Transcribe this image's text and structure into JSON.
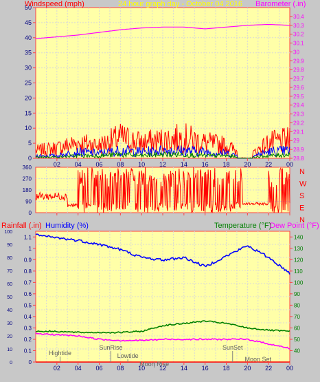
{
  "header": {
    "left_title": "Windspeed (mph)",
    "center_title": "24 hour graph day - October 04 2016",
    "right_title": "Barometer (.in)"
  },
  "colors": {
    "plot_bg": "#ffffa8",
    "grid": "#d8d8d8",
    "axis": "#ff4040",
    "wind_gust": "#ff0000",
    "wind_avg": "#0000ff",
    "wind_low": "#008000",
    "barometer": "#ff00ff",
    "direction": "#ff0000",
    "humidity": "#0000ff",
    "temperature": "#008000",
    "dewpoint": "#ff00ff",
    "title_yellow": "#ffff00"
  },
  "x_ticks": [
    "02",
    "04",
    "06",
    "08",
    "10",
    "12",
    "14",
    "16",
    "18",
    "20",
    "22",
    "00"
  ],
  "chart_data": [
    {
      "type": "line",
      "title": "24 hour graph day - October 04 2016",
      "xlabel": "",
      "ylabel_left": "Windspeed (mph)",
      "ylabel_right": "Barometer (.in)",
      "ylim_left": [
        0,
        50
      ],
      "ylim_right": [
        28.8,
        30.5
      ],
      "left_ticks": [
        "0",
        "5",
        "10",
        "15",
        "20",
        "25",
        "30",
        "35",
        "40",
        "45",
        "50"
      ],
      "right_ticks": [
        "28.8",
        "28.9",
        "29",
        "29.1",
        "29.2",
        "29.3",
        "29.4",
        "29.5",
        "29.6",
        "29.7",
        "29.8",
        "29.9",
        "30",
        "30.1",
        "30.2",
        "30.3",
        "30.4"
      ],
      "x_hours": [
        0,
        2,
        4,
        6,
        8,
        10,
        12,
        14,
        16,
        18,
        20,
        22,
        24
      ],
      "series": [
        {
          "axis": "right",
          "values": [
            30.15,
            30.17,
            30.19,
            30.22,
            30.25,
            30.27,
            30.28,
            30.28,
            30.26,
            30.28,
            30.3,
            30.31,
            30.3
          ]
        },
        {
          "axis": "left",
          "values": [
            3,
            4,
            6,
            5,
            8,
            6,
            7,
            8,
            6,
            5,
            0.5,
            6,
            7
          ]
        },
        {
          "axis": "left",
          "values": [
            1,
            1,
            2.5,
            2,
            3,
            2.5,
            3,
            3,
            2.5,
            2,
            0.3,
            2.5,
            3
          ]
        },
        {
          "axis": "left",
          "values": [
            0.5,
            0.5,
            1,
            1,
            1.5,
            1,
            1.5,
            1.5,
            1,
            1,
            0.1,
            1,
            1.5
          ]
        }
      ]
    },
    {
      "type": "line",
      "ylim": [
        0,
        360
      ],
      "ticks": [
        "0",
        "90",
        "180",
        "270",
        "360"
      ],
      "compass": [
        "N",
        "W",
        "S",
        "E",
        "N"
      ],
      "x_hours": [
        0,
        2,
        4,
        6,
        8,
        10,
        12,
        14,
        16,
        18,
        20,
        22,
        24
      ],
      "series": [
        {
          "values": [
            120,
            150,
            60,
            40,
            200,
            180,
            220,
            190,
            160,
            70,
            60,
            50,
            200
          ]
        }
      ]
    },
    {
      "type": "line",
      "title_left": "Rainfall (.in)",
      "title_humidity": "Humidity (%)",
      "title_temperature": "Temperature (°F)",
      "title_dewpoint": "Dew Point (°F)",
      "ylim_left": [
        0,
        100
      ],
      "ylim_rain": [
        0,
        1.15
      ],
      "ylim_right": [
        30,
        145
      ],
      "left_ticks": [
        "0",
        "10",
        "20",
        "30",
        "40",
        "50",
        "60",
        "70",
        "80",
        "90",
        "100"
      ],
      "rain_ticks": [
        "0",
        "0.1",
        "0.2",
        "0.3",
        "0.4",
        "0.5",
        "0.6",
        "0.7",
        "0.8",
        "0.9",
        "1",
        "1.1"
      ],
      "right_ticks": [
        "40",
        "50",
        "60",
        "70",
        "80",
        "90",
        "100",
        "110",
        "120",
        "130",
        "140"
      ],
      "x_hours": [
        0,
        2,
        4,
        6,
        8,
        10,
        12,
        14,
        16,
        18,
        20,
        22,
        24
      ],
      "series": [
        {
          "name": "Humidity (%)",
          "axis": "left",
          "values": [
            97,
            95,
            93,
            90,
            86,
            80,
            78,
            80,
            73,
            81,
            89,
            80,
            68
          ]
        },
        {
          "name": "Temperature (°F)",
          "axis": "right",
          "values": [
            57,
            57,
            56,
            56,
            56,
            57,
            62,
            64,
            66,
            64,
            60,
            58,
            57
          ]
        },
        {
          "name": "Dew Point (°F)",
          "axis": "right",
          "values": [
            55,
            54,
            53,
            50,
            49,
            49,
            50,
            50,
            50,
            50,
            50,
            46,
            42
          ]
        },
        {
          "name": "Rainfall (.in)",
          "axis": "rain",
          "values": [
            0,
            0,
            0,
            0,
            0,
            0,
            0,
            0,
            0,
            0,
            0,
            0,
            0
          ]
        }
      ],
      "annotations": [
        {
          "label": "Hightide",
          "hour": 2.3
        },
        {
          "label": "SunRise",
          "hour": 7.1
        },
        {
          "label": "Lowtide",
          "hour": 8.7
        },
        {
          "label": "Moon Rise",
          "hour": 11.2
        },
        {
          "label": "SunSet",
          "hour": 18.6
        },
        {
          "label": "Moon Set",
          "hour": 21.0
        }
      ]
    }
  ]
}
